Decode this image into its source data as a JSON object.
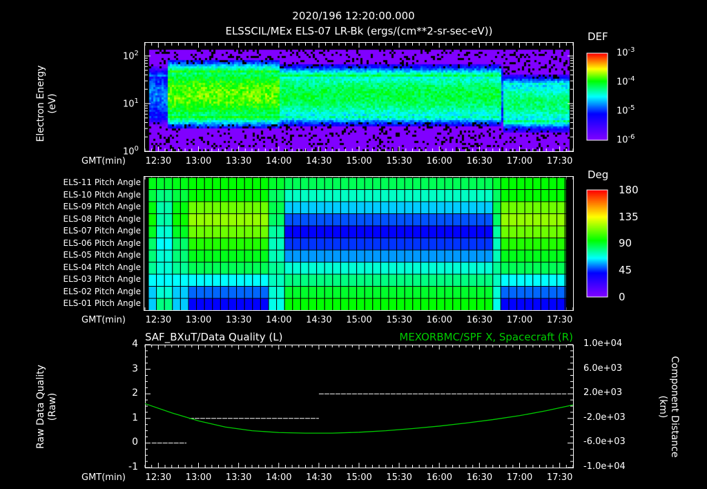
{
  "header": {
    "datetime": "2020/196 12:20:00.000",
    "title": "ELSSCIL/MEx ELS-07 LR-Bk  (ergs/(cm**2-sr-sec-eV))"
  },
  "time_axis_label": "GMT(min)",
  "time_ticks": [
    "12:30",
    "13:00",
    "13:30",
    "14:00",
    "14:30",
    "15:00",
    "15:30",
    "16:00",
    "16:30",
    "17:00",
    "17:30"
  ],
  "colors": {
    "background": "#000000",
    "axis": "#ffffff",
    "orbit_line": "#00cc00"
  },
  "chart_data": [
    {
      "type": "heatmap",
      "name": "spectrogram",
      "ylabel_line1": "Electron Energy",
      "ylabel_line2": "(eV)",
      "ylim": [
        1,
        190
      ],
      "yscale": "log",
      "yticks": [
        {
          "base": "10",
          "exp": "0",
          "value": 1
        },
        {
          "base": "10",
          "exp": "1",
          "value": 10
        },
        {
          "base": "10",
          "exp": "2",
          "value": 100
        }
      ],
      "xlim_min": [
        740,
        1060
      ],
      "colorbar": {
        "title": "DEF",
        "range_log10": [
          -6,
          -3
        ],
        "ticks": [
          {
            "base": "10",
            "exp": "-3"
          },
          {
            "base": "10",
            "exp": "-4"
          },
          {
            "base": "10",
            "exp": "-5"
          },
          {
            "base": "10",
            "exp": "-6"
          }
        ]
      },
      "bands": [
        {
          "start": "12:25",
          "end": "12:37",
          "low_eV": 6,
          "high_eV": 40,
          "peak_log10_def": -4.8
        },
        {
          "start": "12:37",
          "end": "14:00",
          "low_eV": 6,
          "high_eV": 45,
          "peak_log10_def": -3.8
        },
        {
          "start": "14:00",
          "end": "16:45",
          "low_eV": 6,
          "high_eV": 40,
          "peak_log10_def": -4.1
        },
        {
          "start": "16:47",
          "end": "17:37",
          "low_eV": 4.5,
          "high_eV": 25,
          "peak_log10_def": -4.2
        }
      ]
    },
    {
      "type": "heatmap",
      "name": "pitch-angle",
      "rows": [
        "ELS-11 Pitch Angle",
        "ELS-10 Pitch Angle",
        "ELS-09 Pitch Angle",
        "ELS-08 Pitch Angle",
        "ELS-07 Pitch Angle",
        "ELS-06 Pitch Angle",
        "ELS-05 Pitch Angle",
        "ELS-04 Pitch Angle",
        "ELS-03 Pitch Angle",
        "ELS-02 Pitch Angle",
        "ELS-01 Pitch Angle"
      ],
      "colorbar": {
        "title": "Deg",
        "range": [
          0,
          180
        ],
        "ticks": [
          "180",
          "135",
          "90",
          "45",
          "0"
        ]
      },
      "states": {
        "early": [
          90,
          80,
          75,
          75,
          70,
          65,
          70,
          70,
          65,
          70,
          80
        ],
        "a": [
          95,
          95,
          112,
          118,
          112,
          100,
          92,
          85,
          65,
          50,
          40
        ],
        "b": [
          85,
          72,
          60,
          48,
          40,
          45,
          55,
          70,
          80,
          90,
          95
        ]
      },
      "segments": [
        {
          "start_min": 744,
          "end_min": 767,
          "state": "early"
        },
        {
          "start_min": 767,
          "end_min": 838,
          "state": "a"
        },
        {
          "start_min": 838,
          "end_min": 1005,
          "state": "b"
        },
        {
          "start_min": 1005,
          "end_min": 1055,
          "state": "a"
        }
      ]
    },
    {
      "type": "line",
      "name": "data-quality-and-orbit",
      "title_left": "SAF_BXuT/Data Quality (L)",
      "title_right": "MEXORBMC/SPF X, Spacecraft (R)",
      "ylabel_left_line1": "Raw Data Quality",
      "ylabel_left_line2": "(Raw)",
      "ylabel_right_line1": "Component Distance",
      "ylabel_right_line2": "(km)",
      "ylim_left": [
        -1,
        4
      ],
      "yticks_left": [
        "4",
        "3",
        "2",
        "1",
        "0",
        "-1"
      ],
      "ylim_right": [
        -10000,
        10000
      ],
      "yticks_right": [
        "1.0e+04",
        "6.0e+03",
        "2.0e+03",
        "-2.0e+03",
        "-6.0e+03",
        "-1.0e+04"
      ],
      "series": [
        {
          "name": "Data Quality",
          "axis": "left",
          "steps": [
            {
              "start_min": 745,
              "end_min": 771,
              "value": 0
            },
            {
              "start_min": 773,
              "end_min": 870,
              "value": 1
            },
            {
              "start_min": 870,
              "end_min": 1055,
              "value": 2
            }
          ]
        },
        {
          "name": "SPF X",
          "axis": "right",
          "x_min": [
            740,
            760,
            780,
            800,
            820,
            840,
            860,
            880,
            900,
            920,
            940,
            960,
            980,
            1000,
            1020,
            1040,
            1060
          ],
          "y_km": [
            400,
            -1100,
            -2400,
            -3400,
            -4000,
            -4300,
            -4400,
            -4400,
            -4250,
            -4000,
            -3650,
            -3250,
            -2750,
            -2200,
            -1550,
            -750,
            200
          ]
        }
      ]
    }
  ]
}
